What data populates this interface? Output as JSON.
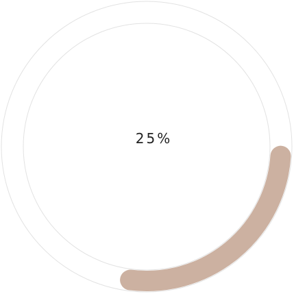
{
  "progress": {
    "label": "25%",
    "fraction": 0.25,
    "arc_color": "#ccb1a1",
    "ring_color": "#e2e2e2"
  }
}
